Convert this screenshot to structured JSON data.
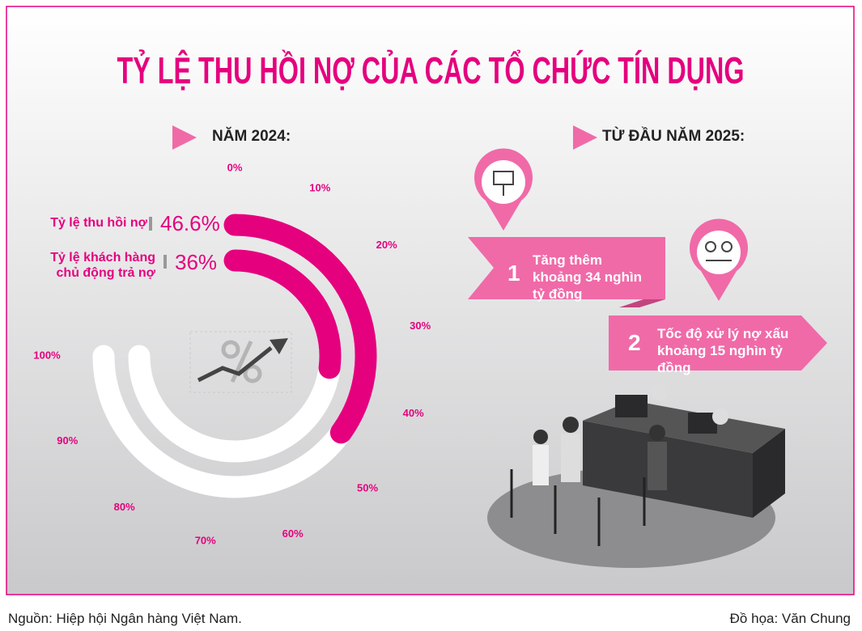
{
  "title": "TỶ LỆ THU HỒI NỢ CỦA CÁC TỔ CHỨC TÍN DỤNG",
  "chart_data": {
    "type": "radial-bar",
    "subtitle": "NĂM 2024:",
    "categories": [
      "Tỷ lệ thu hồi nợ",
      "Tỷ lệ khách hàng chủ động trả nợ"
    ],
    "values": [
      46.6,
      36
    ],
    "value_labels": [
      "46.6%",
      "36%"
    ],
    "color": "#e5007e",
    "rlim": [
      0,
      100
    ],
    "rticks": [
      {
        "value": 0,
        "label": "0%"
      },
      {
        "value": 10,
        "label": "10%"
      },
      {
        "value": 20,
        "label": "20%"
      },
      {
        "value": 30,
        "label": "30%"
      },
      {
        "value": 40,
        "label": "40%"
      },
      {
        "value": 50,
        "label": "50%"
      },
      {
        "value": 60,
        "label": "60%"
      },
      {
        "value": 70,
        "label": "70%"
      },
      {
        "value": 80,
        "label": "80%"
      },
      {
        "value": 90,
        "label": "90%"
      },
      {
        "value": 100,
        "label": "100%"
      }
    ]
  },
  "section2": {
    "heading": "TỪ ĐẦU NĂM 2025:",
    "items": [
      {
        "number": "1",
        "text": "Tăng thêm khoảng 34 nghìn tỷ đồng"
      },
      {
        "number": "2",
        "text": "Tốc độ xử lý nợ xấu khoảng 15 nghìn tỷ đồng"
      }
    ]
  },
  "footer": {
    "source": "Nguồn: Hiệp hội Ngân hàng Việt Nam.",
    "credit": "Đồ họa: Văn Chung"
  }
}
